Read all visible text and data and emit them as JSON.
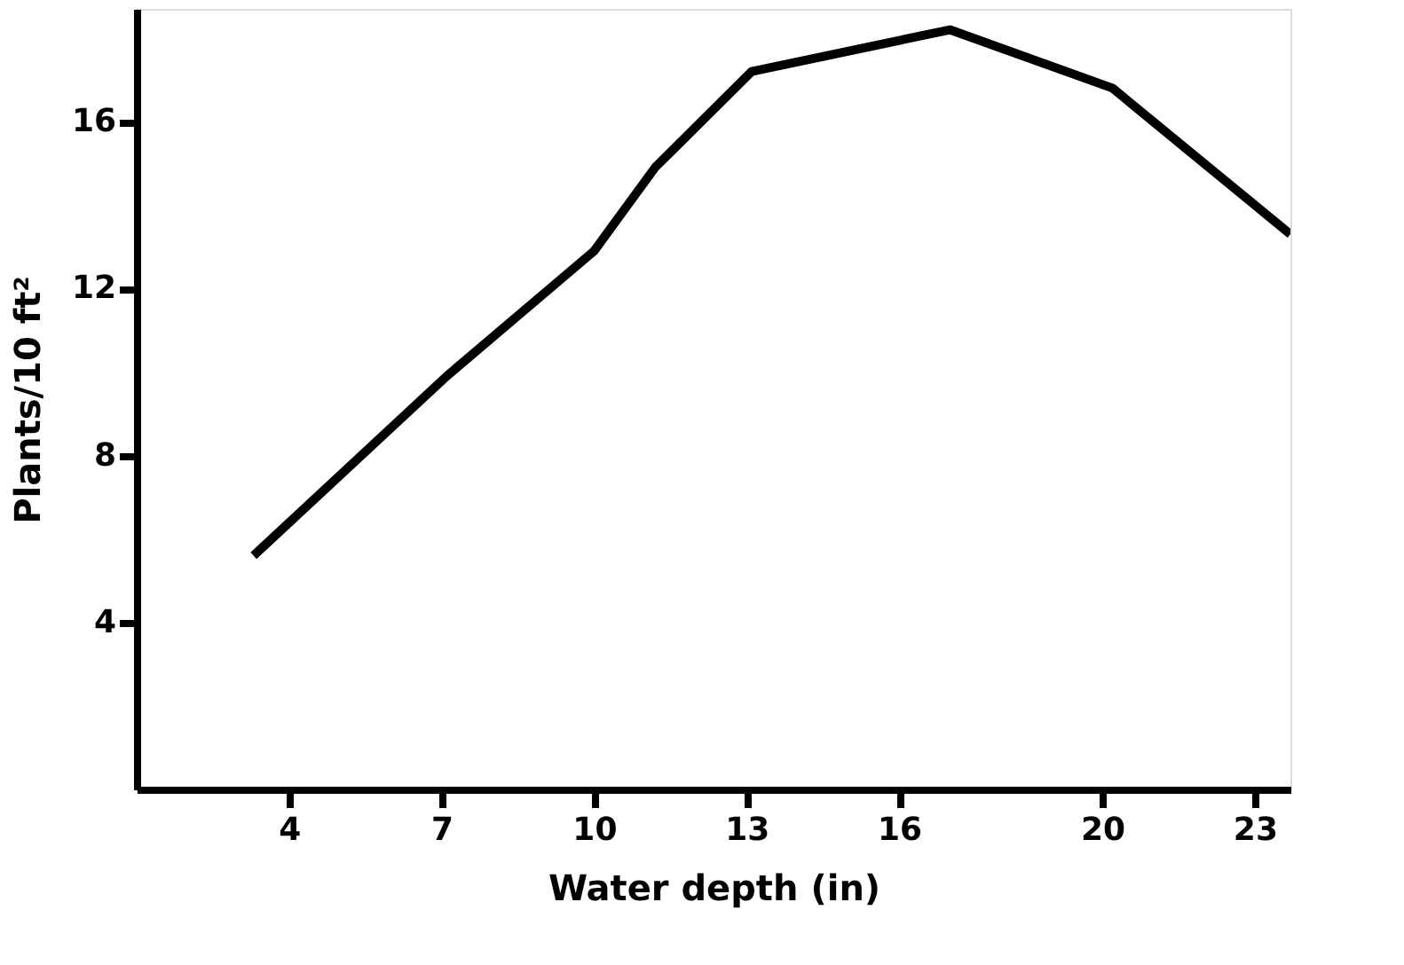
{
  "chart_data": {
    "type": "line",
    "xlabel": "Water depth (in)",
    "ylabel": "Plants/10 ft²",
    "x": [
      3.3,
      7.1,
      10,
      11.2,
      13.1,
      17.0,
      20.2,
      23.7
    ],
    "series": [
      {
        "color": "#000000",
        "values": [
          5.6,
          9.9,
          12.9,
          14.9,
          17.2,
          18.2,
          16.8,
          13.3
        ]
      }
    ],
    "xlim": [
      1,
      23.7
    ],
    "xticks": [
      4,
      7,
      10,
      13,
      16,
      20,
      23
    ],
    "ylim": [
      0,
      18.7
    ],
    "yticks": [
      4,
      8,
      12,
      16
    ],
    "grid": false,
    "marker": "none",
    "line_style": "solid"
  }
}
